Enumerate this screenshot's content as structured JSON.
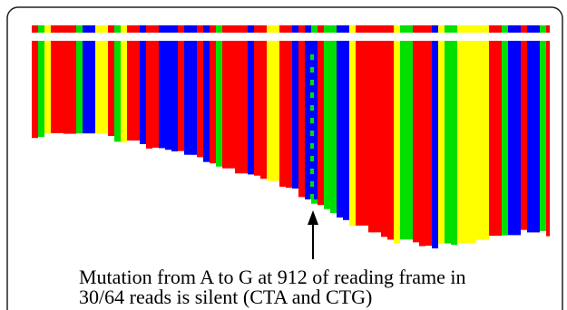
{
  "annotation": {
    "lines": [
      "Mutation from A to G at 912 of reading frame in",
      "30/64 reads is silent (CTA and CTG)"
    ]
  }
}
